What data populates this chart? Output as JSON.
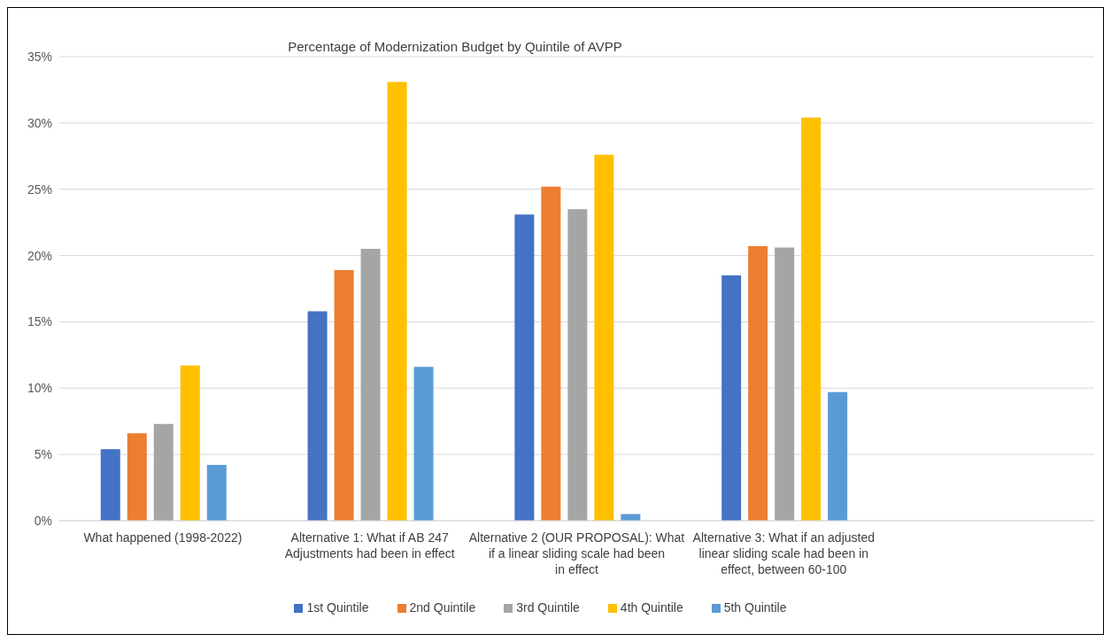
{
  "chart_data": {
    "type": "bar",
    "title": "Percentage of Modernization Budget by Quintile of AVPP",
    "categories": [
      "What happened (1998-2022)",
      "Alternative 1: What if AB 247 Adjustments had been in effect",
      "Alternative 2 (OUR PROPOSAL): What if a linear sliding scale had been in effect",
      "Alternative 3: What if an adjusted linear sliding scale had been in effect, between 60-100",
      null
    ],
    "series": [
      {
        "name": "1st Quintile",
        "color": "#4472c4",
        "values": [
          5.4,
          15.8,
          23.1,
          18.5,
          null
        ]
      },
      {
        "name": "2nd Quintile",
        "color": "#ed7d31",
        "values": [
          6.6,
          18.9,
          25.2,
          20.7,
          null
        ]
      },
      {
        "name": "3rd Quintile",
        "color": "#a5a5a5",
        "values": [
          7.3,
          20.5,
          23.5,
          20.6,
          null
        ]
      },
      {
        "name": "4th Quintile",
        "color": "#ffc000",
        "values": [
          11.7,
          33.1,
          27.6,
          30.4,
          null
        ]
      },
      {
        "name": "5th Quintile",
        "color": "#5b9bd5",
        "values": [
          4.2,
          11.6,
          0.5,
          9.7,
          null
        ]
      }
    ],
    "ylim": [
      0,
      35
    ],
    "yticks": [
      {
        "value": 0,
        "label": "0%"
      },
      {
        "value": 5,
        "label": "5%"
      },
      {
        "value": 10,
        "label": "10%"
      },
      {
        "value": 15,
        "label": "15%"
      },
      {
        "value": 20,
        "label": "20%"
      },
      {
        "value": 25,
        "label": "25%"
      },
      {
        "value": 30,
        "label": "30%"
      },
      {
        "value": 35,
        "label": "35%"
      }
    ],
    "grid": "y",
    "legend": "bottom"
  }
}
